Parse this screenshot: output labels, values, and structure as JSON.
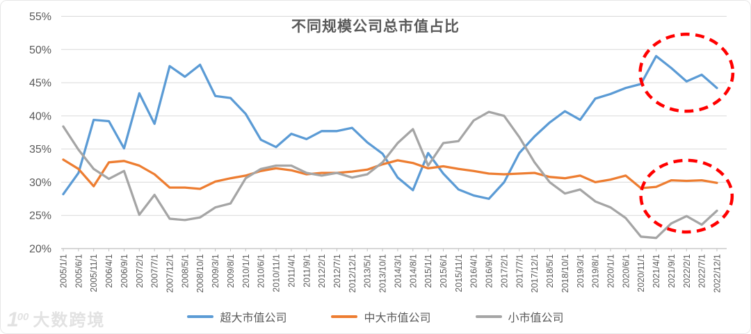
{
  "title": "不同规模公司总市值占比",
  "watermark": {
    "logo_number": "1",
    "logo_zeros": "00",
    "text": "大数跨境"
  },
  "legend": {
    "position": "bottom"
  },
  "chart_data": {
    "type": "line",
    "title": "不同规模公司总市值占比",
    "xlabel": "",
    "ylabel": "",
    "grid": true,
    "legend_position": "bottom",
    "y_axis": {
      "min": 20,
      "max": 55,
      "step": 5,
      "suffix": "%"
    },
    "categories": [
      "2005/1/1",
      "2005/6/1",
      "2005/11/1",
      "2006/4/1",
      "2006/9/1",
      "2007/2/1",
      "2007/7/1",
      "2007/12/1",
      "2008/5/1",
      "2008/10/1",
      "2009/3/1",
      "2009/8/1",
      "2010/1/1",
      "2010/6/1",
      "2010/11/1",
      "2011/4/1",
      "2011/9/1",
      "2012/2/1",
      "2012/7/1",
      "2012/12/1",
      "2013/5/1",
      "2013/10/1",
      "2014/3/1",
      "2014/8/1",
      "2015/1/1",
      "2015/6/1",
      "2015/11/1",
      "2016/4/1",
      "2016/9/1",
      "2017/2/1",
      "2017/7/1",
      "2017/12/1",
      "2018/5/1",
      "2018/10/1",
      "2019/3/1",
      "2019/8/1",
      "2020/1/1",
      "2020/6/1",
      "2020/11/1",
      "2021/4/1",
      "2021/9/1",
      "2022/2/1",
      "2022/7/1",
      "2022/12/1"
    ],
    "series": [
      {
        "name": "超大市值公司",
        "color": "#5B9BD5",
        "values": [
          28.2,
          31.4,
          39.4,
          39.2,
          35.1,
          43.4,
          38.8,
          47.5,
          45.9,
          47.7,
          43.0,
          42.7,
          40.3,
          36.4,
          35.3,
          37.3,
          36.5,
          37.7,
          37.7,
          38.2,
          36.0,
          34.3,
          30.7,
          28.8,
          34.4,
          31.3,
          28.9,
          28.0,
          27.5,
          30.0,
          34.4,
          36.9,
          39.0,
          40.7,
          39.4,
          42.6,
          43.3,
          44.2,
          44.8,
          49.0,
          47.2,
          45.2,
          46.2,
          44.2
        ]
      },
      {
        "name": "中大市值公司",
        "color": "#ED7D31",
        "values": [
          33.4,
          32.0,
          29.4,
          33.0,
          33.2,
          32.5,
          31.2,
          29.2,
          29.2,
          29.0,
          30.1,
          30.6,
          31.0,
          31.7,
          32.1,
          31.8,
          31.2,
          31.4,
          31.4,
          31.6,
          31.9,
          32.7,
          33.3,
          32.9,
          32.1,
          32.4,
          32.0,
          31.7,
          31.3,
          31.2,
          31.3,
          31.4,
          30.8,
          30.6,
          31.0,
          30.0,
          30.4,
          31.0,
          29.1,
          29.3,
          30.3,
          30.2,
          30.3,
          29.9
        ]
      },
      {
        "name": "小市值公司",
        "color": "#A5A5A5",
        "values": [
          38.4,
          34.9,
          32.0,
          30.5,
          31.7,
          25.1,
          28.1,
          24.5,
          24.3,
          24.7,
          26.2,
          26.8,
          30.6,
          32.0,
          32.5,
          32.5,
          31.4,
          31.0,
          31.4,
          30.7,
          31.2,
          33.0,
          35.9,
          38.0,
          32.5,
          35.9,
          36.2,
          39.3,
          40.6,
          40.0,
          36.8,
          33.0,
          30.0,
          28.3,
          28.9,
          27.1,
          26.2,
          24.6,
          21.8,
          21.6,
          23.8,
          24.9,
          23.6,
          25.7
        ]
      }
    ],
    "annotations": [
      {
        "shape": "ellipse",
        "purpose": "highlight-top-right",
        "color": "#FF0000",
        "center_category_index": 41.0,
        "center_value": 46.5,
        "radius_categories": 3.05,
        "radius_value": 5.8
      },
      {
        "shape": "ellipse",
        "purpose": "highlight-bottom-right",
        "color": "#FF0000",
        "center_category_index": 41.0,
        "center_value": 27.9,
        "radius_categories": 3.0,
        "radius_value": 5.4
      }
    ]
  }
}
